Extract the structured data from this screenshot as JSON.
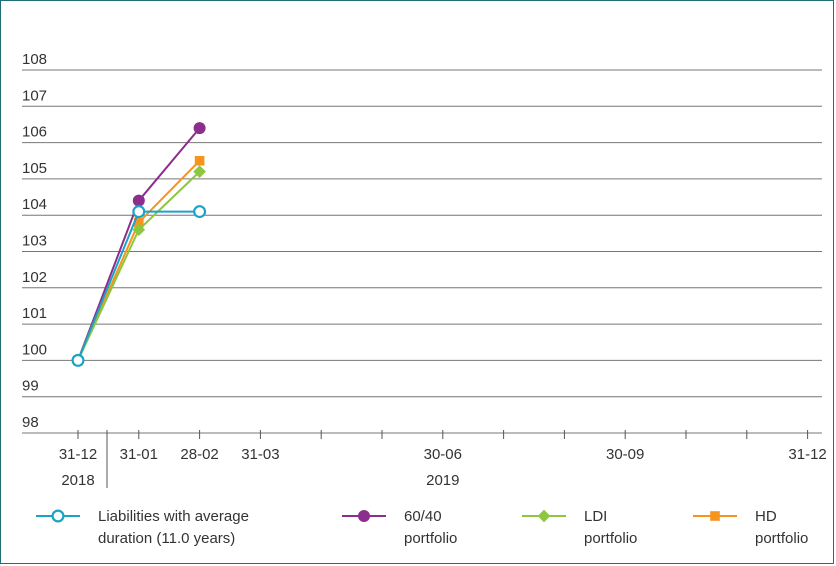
{
  "chart_data": {
    "type": "line",
    "title": "",
    "xlabel": "",
    "ylabel": "",
    "ylim": [
      98,
      108
    ],
    "yticks": [
      "98",
      "99",
      "100",
      "101",
      "102",
      "103",
      "104",
      "105",
      "106",
      "107",
      "108"
    ],
    "x_tick_labels": [
      "31-12",
      "31-01",
      "28-02",
      "31-03",
      "30-06",
      "30-09",
      "31-12"
    ],
    "x_year_labels": [
      "2018",
      "2019"
    ],
    "x": [
      "31-12-2018",
      "31-01-2019",
      "28-02-2019"
    ],
    "series": [
      {
        "name": "Liabilities with average duration (11.0 years)",
        "name_lines": [
          "Liabilities with average",
          "duration (11.0 years)"
        ],
        "color": "#1ba3c6",
        "marker": "open-circle",
        "values": [
          100,
          104.1,
          104.1
        ]
      },
      {
        "name": "60/40 portfolio",
        "name_lines": [
          "60/40",
          "portfolio"
        ],
        "color": "#8b2e8c",
        "marker": "circle",
        "values": [
          100,
          104.4,
          106.4
        ]
      },
      {
        "name": "LDI portfolio",
        "name_lines": [
          "LDI",
          "portfolio"
        ],
        "color": "#8dc63f",
        "marker": "diamond",
        "values": [
          100,
          103.6,
          105.2
        ]
      },
      {
        "name": "HD portfolio",
        "name_lines": [
          "HD",
          "portfolio"
        ],
        "color": "#f7941d",
        "marker": "square",
        "values": [
          100,
          103.8,
          105.5
        ]
      }
    ],
    "grid": true,
    "legend_position": "bottom"
  }
}
